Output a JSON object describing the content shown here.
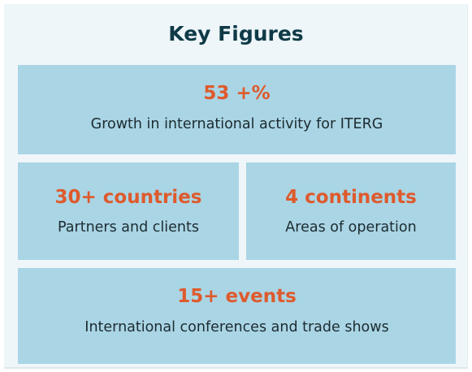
{
  "title": "Key Figures",
  "figures": [
    {
      "value": "53 +%",
      "label": "Growth in international activity for ITERG"
    },
    {
      "value": "30+ countries",
      "label": "Partners and clients"
    },
    {
      "value": "4 continents",
      "label": "Areas of operation"
    },
    {
      "value": "15+ events",
      "label": "International conferences and trade shows"
    }
  ]
}
